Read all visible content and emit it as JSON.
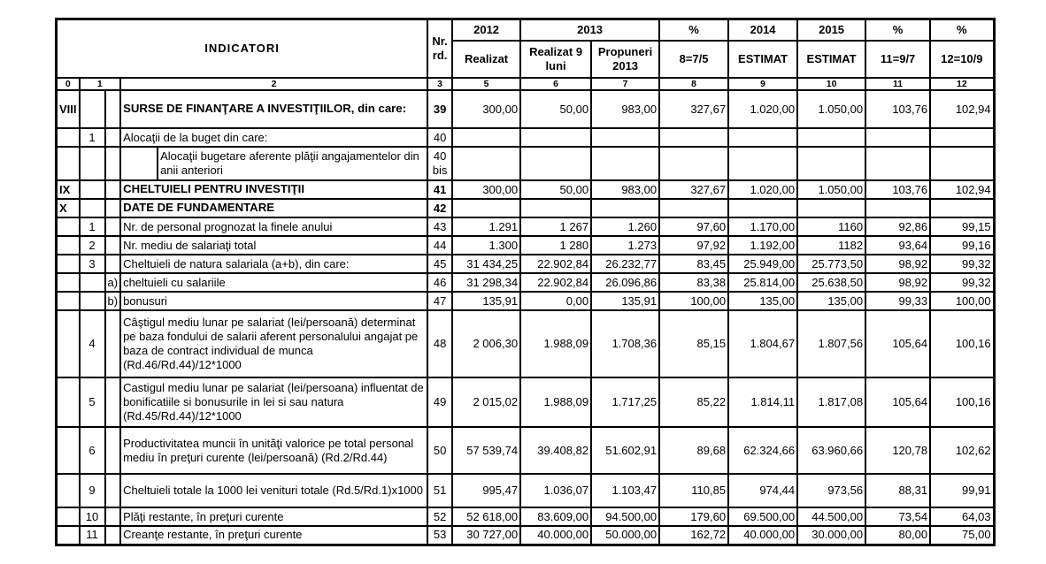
{
  "table": {
    "header": {
      "indicatori": "INDICATORI",
      "nr": "Nr.",
      "rd": "rd.",
      "y2012": "2012",
      "realizat": "Realizat",
      "y2013": "2013",
      "realizat9luni": "Realizat 9 luni",
      "propuneri2013": "Propuneri 2013",
      "pct1": "%",
      "f8": "8=7/5",
      "y2014": "2014",
      "estimat2014": "ESTIMAT",
      "y2015": "2015",
      "estimat2015": "ESTIMAT",
      "pct2": "%",
      "f11": "11=9/7",
      "pct3": "%",
      "f12": "12=10/9"
    },
    "col_numbers": [
      "0",
      "1",
      "2",
      "3",
      "5",
      "6",
      "7",
      "8",
      "9",
      "10",
      "11",
      "12"
    ],
    "rows": [
      {
        "roman": "VIII",
        "num": "",
        "letter": "",
        "indent": false,
        "bold": true,
        "label": "SURSE DE FINANŢARE A INVESTIŢIILOR, din care:",
        "rd": "39",
        "values": [
          "300,00",
          "50,00",
          "983,00",
          "327,67",
          "1.020,00",
          "1.050,00",
          "103,76",
          "102,94"
        ]
      },
      {
        "roman": "",
        "num": "1",
        "letter": "",
        "indent": false,
        "bold": false,
        "label": "Alocaţii de la buget din care:",
        "rd": "40",
        "values": [
          "",
          "",
          "",
          "",
          "",
          "",
          "",
          ""
        ]
      },
      {
        "roman": "",
        "num": "",
        "letter": "",
        "indent": true,
        "bold": false,
        "label": "Alocaţii bugetare aferente plăţii angajamentelor din anii anteriori",
        "rd": "40 bis",
        "values": [
          "",
          "",
          "",
          "",
          "",
          "",
          "",
          ""
        ]
      },
      {
        "roman": "IX",
        "num": "",
        "letter": "",
        "indent": false,
        "bold": true,
        "label": "CHELTUIELI  PENTRU INVESTIŢII",
        "rd": "41",
        "values": [
          "300,00",
          "50,00",
          "983,00",
          "327,67",
          "1.020,00",
          "1.050,00",
          "103,76",
          "102,94"
        ]
      },
      {
        "roman": "X",
        "num": "",
        "letter": "",
        "indent": false,
        "bold": true,
        "label": "DATE DE FUNDAMENTARE",
        "rd": "42",
        "values": [
          "",
          "",
          "",
          "",
          "",
          "",
          "",
          ""
        ]
      },
      {
        "roman": "",
        "num": "1",
        "letter": "",
        "indent": false,
        "bold": false,
        "label": "Nr. de personal prognozat la finele anului",
        "rd": "43",
        "values": [
          "1.291",
          "1 267",
          "1.260",
          "97,60",
          "1.170,00",
          "1160",
          "92,86",
          "99,15"
        ]
      },
      {
        "roman": "",
        "num": "2",
        "letter": "",
        "indent": false,
        "bold": false,
        "label": "Nr. mediu de salariaţi total",
        "rd": "44",
        "values": [
          "1.300",
          "1 280",
          "1.273",
          "97,92",
          "1.192,00",
          "1182",
          "93,64",
          "99,16"
        ]
      },
      {
        "roman": "",
        "num": "3",
        "letter": "",
        "indent": false,
        "bold": false,
        "label": "Cheltuieli de natura salariala (a+b), din care:",
        "rd": "45",
        "values": [
          "31 434,25",
          "22.902,84",
          "26.232,77",
          "83,45",
          "25.949,00",
          "25.773,50",
          "98,92",
          "99,32"
        ]
      },
      {
        "roman": "",
        "num": "",
        "letter": "a)",
        "indent": false,
        "bold": false,
        "label": "cheltuieli cu salariile",
        "rd": "46",
        "values": [
          "31 298,34",
          "22.902,84",
          "26.096,86",
          "83,38",
          "25.814,00",
          "25.638,50",
          "98,92",
          "99,32"
        ]
      },
      {
        "roman": "",
        "num": "",
        "letter": "b)",
        "indent": false,
        "bold": false,
        "label": "bonusuri",
        "rd": "47",
        "values": [
          "135,91",
          "0,00",
          "135,91",
          "100,00",
          "135,00",
          "135,00",
          "99,33",
          "100,00"
        ]
      },
      {
        "roman": "",
        "num": "4",
        "letter": "",
        "indent": false,
        "bold": false,
        "label": "Câştigul mediu lunar pe salariat (lei/persoană) determinat pe baza fondului de salarii aferent personalului angajat  pe baza de contract individual de munca (Rd.46/Rd.44)/12*1000",
        "rd": "48",
        "values": [
          "2 006,30",
          "1.988,09",
          "1.708,36",
          "85,15",
          "1.804,67",
          "1.807,56",
          "105,64",
          "100,16"
        ]
      },
      {
        "roman": "",
        "num": "5",
        "letter": "",
        "indent": false,
        "bold": false,
        "label": "Castigul mediu lunar pe salariat (lei/persoana) influentat de bonificatiile si bonusurile in lei si sau natura  (Rd.45/Rd.44)/12*1000",
        "rd": "49",
        "values": [
          "2 015,02",
          "1.988,09",
          "1.717,25",
          "85,22",
          "1.814,11",
          "1.817,08",
          "105,64",
          "100,16"
        ]
      },
      {
        "roman": "",
        "num": "6",
        "letter": "",
        "indent": false,
        "bold": false,
        "label": "Productivitatea muncii în unităţi valorice pe total personal mediu în preţuri curente (lei/persoană) (Rd.2/Rd.44)",
        "rd": "50",
        "values": [
          "57 539,74",
          "39.408,82",
          "51.602,91",
          "89,68",
          "62.324,66",
          "63.960,66",
          "120,78",
          "102,62"
        ]
      },
      {
        "roman": "",
        "num": "9",
        "letter": "",
        "indent": false,
        "bold": false,
        "label": "Cheltuieli totale la 1000 lei venituri totale (Rd.5/Rd.1)x1000",
        "rd": "51",
        "values": [
          "995,47",
          "1.036,07",
          "1.103,47",
          "110,85",
          "974,44",
          "973,56",
          "88,31",
          "99,91"
        ]
      },
      {
        "roman": "",
        "num": "10",
        "letter": "",
        "indent": false,
        "bold": false,
        "label": "Plăţi restante, în preţuri curente",
        "rd": "52",
        "values": [
          "52 618,00",
          "83.609,00",
          "94.500,00",
          "179,60",
          "69.500,00",
          "44.500,00",
          "73,54",
          "64,03"
        ]
      },
      {
        "roman": "",
        "num": "11",
        "letter": "",
        "indent": false,
        "bold": false,
        "label": "Creanţe restante, în preţuri curente",
        "rd": "53",
        "values": [
          "30 727,00",
          "40.000,00",
          "50.000,00",
          "162,72",
          "40.000,00",
          "30.000,00",
          "80,00",
          "75,00"
        ]
      }
    ]
  }
}
